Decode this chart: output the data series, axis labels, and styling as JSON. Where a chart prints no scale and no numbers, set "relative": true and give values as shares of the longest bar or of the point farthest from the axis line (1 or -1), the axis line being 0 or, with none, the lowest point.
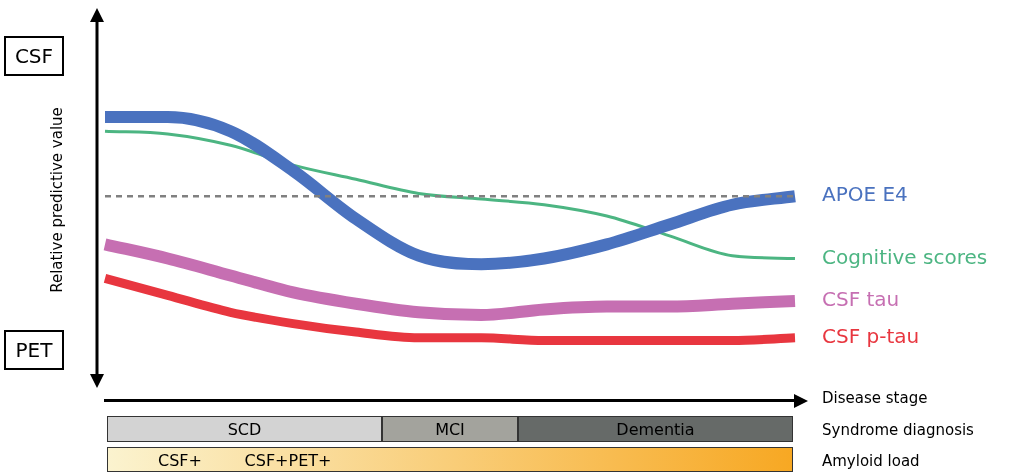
{
  "chart_data": {
    "type": "line",
    "relative": true,
    "xlabel": "Disease stage",
    "ylabel": "Relative predictive value",
    "legend": false,
    "marker": "none",
    "categories": [
      null,
      null,
      null,
      null,
      null,
      null,
      null,
      null,
      null,
      null,
      null,
      null
    ],
    "series": [
      {
        "name": "APOE E4",
        "color": "#4a72bf",
        "values": [
          1.0,
          1.0,
          0.95,
          0.81,
          0.64,
          0.51,
          0.48,
          0.5,
          0.55,
          0.62,
          0.69,
          0.72
        ]
      },
      {
        "name": "Cognitive scores",
        "color": "#4cb582",
        "values": [
          0.95,
          0.94,
          0.9,
          0.83,
          0.78,
          0.73,
          0.71,
          0.69,
          0.65,
          0.58,
          0.51,
          0.5
        ]
      },
      {
        "name": "CSF tau",
        "color": "#c66fb2",
        "values": [
          0.55,
          0.5,
          0.44,
          0.38,
          0.34,
          0.31,
          0.3,
          0.32,
          0.33,
          0.33,
          0.34,
          0.35
        ]
      },
      {
        "name": "CSF p-tau",
        "color": "#e8363f",
        "values": [
          0.43,
          0.37,
          0.31,
          0.27,
          0.24,
          0.22,
          0.22,
          0.21,
          0.21,
          0.21,
          0.21,
          0.22
        ]
      }
    ],
    "ref_lines": [
      {
        "axis": "y",
        "value": 0.72,
        "color": "#808080",
        "line_style": "dashed"
      }
    ],
    "annotations": [
      "CSF",
      "PET",
      "SCD",
      "MCI",
      "Dementia",
      "Syndrome diagnosis",
      "CSF+",
      "CSF+PET+",
      "Amyloid load"
    ]
  }
}
